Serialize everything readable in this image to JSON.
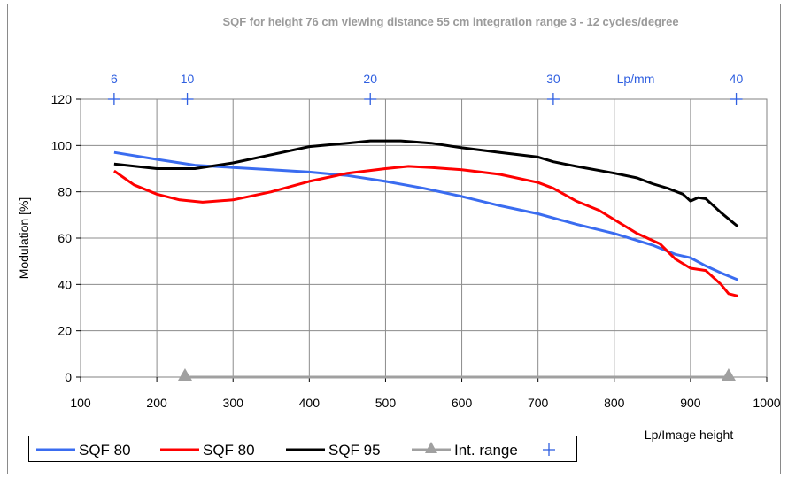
{
  "chart_data": {
    "type": "line",
    "title": "SQF for height 76 cm  viewing distance 55 cm   integration range 3 - 12 cycles/degree",
    "xlabel": "Lp/Image height",
    "ylabel": "Modulation [%]",
    "xlim": [
      100,
      1000
    ],
    "ylim": [
      0,
      120
    ],
    "x_ticks": [
      "100",
      "200",
      "300",
      "400",
      "500",
      "600",
      "700",
      "800",
      "900",
      "1000"
    ],
    "y_ticks": [
      "0",
      "20",
      "40",
      "60",
      "80",
      "100",
      "120"
    ],
    "grid": true,
    "top_axis": {
      "label": "Lp/mm",
      "ticks": [
        {
          "label": "6",
          "x": 144
        },
        {
          "label": "10",
          "x": 240
        },
        {
          "label": "20",
          "x": 480
        },
        {
          "label": "30",
          "x": 720
        },
        {
          "label": "40",
          "x": 960
        }
      ]
    },
    "series": [
      {
        "name": "SQF 80",
        "color": "#3a6cf0",
        "x": [
          144,
          200,
          250,
          300,
          350,
          400,
          450,
          500,
          550,
          600,
          650,
          700,
          750,
          800,
          850,
          880,
          900,
          920,
          940,
          962
        ],
        "y": [
          97,
          94,
          91.5,
          90.5,
          89.5,
          88.5,
          87,
          84.5,
          81.5,
          78,
          74,
          70.5,
          66,
          62,
          57,
          53,
          51.5,
          48,
          45,
          42
        ]
      },
      {
        "name": "SQF 80",
        "color": "#ff0000",
        "x": [
          144,
          170,
          200,
          230,
          260,
          300,
          350,
          400,
          450,
          500,
          530,
          560,
          600,
          650,
          700,
          720,
          750,
          780,
          800,
          830,
          860,
          880,
          900,
          920,
          940,
          950,
          962
        ],
        "y": [
          89,
          83,
          79,
          76.5,
          75.5,
          76.5,
          80,
          84.5,
          88,
          90,
          91,
          90.5,
          89.5,
          87.5,
          84,
          81.5,
          76,
          72,
          68,
          62,
          57.5,
          51,
          47,
          46,
          40,
          36,
          35
        ]
      },
      {
        "name": "SQF 95",
        "color": "#000000",
        "x": [
          144,
          200,
          250,
          300,
          350,
          400,
          450,
          480,
          520,
          560,
          600,
          650,
          700,
          720,
          750,
          800,
          830,
          850,
          870,
          890,
          900,
          910,
          920,
          940,
          962
        ],
        "y": [
          92,
          90,
          90,
          92.5,
          96,
          99.5,
          101,
          102,
          102,
          101,
          99,
          97,
          95,
          93,
          91,
          88,
          86,
          83.5,
          81.5,
          79,
          76,
          77.5,
          77,
          71,
          65
        ]
      },
      {
        "name": "Int. range",
        "color": "#a0a0a0",
        "x": [
          237,
          950
        ],
        "y": [
          0,
          0
        ]
      }
    ],
    "legend": {
      "placement": "bottom-left",
      "entries": [
        "SQF 80",
        "SQF 80",
        "SQF 95",
        "Int. range",
        ""
      ]
    }
  }
}
